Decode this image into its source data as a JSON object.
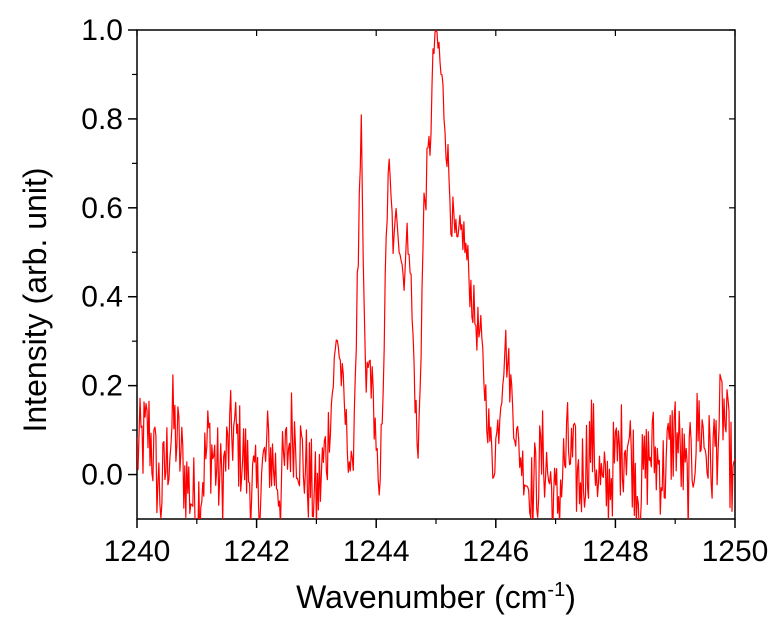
{
  "chart_data": {
    "type": "line",
    "title": "",
    "xlabel": "Wavenumber (cm",
    "xlabel_superscript": "-1",
    "xlabel_suffix": ")",
    "ylabel": "Intensity (arb. unit)",
    "xlim": [
      1240,
      1250
    ],
    "ylim": [
      -0.1,
      1.0
    ],
    "x_ticks": [
      "1240",
      "1242",
      "1244",
      "1246",
      "1248",
      "1250"
    ],
    "y_ticks": [
      "0.0",
      "0.2",
      "0.4",
      "0.6",
      "0.8",
      "1.0"
    ],
    "grid": false,
    "legend": "none",
    "series": [
      {
        "color": "#ff0000",
        "x": [
          1240.0,
          1240.2,
          1240.4,
          1240.6,
          1240.8,
          1241.0,
          1241.2,
          1241.4,
          1241.6,
          1241.8,
          1242.0,
          1242.2,
          1242.4,
          1242.6,
          1242.8,
          1243.0,
          1243.2,
          1243.35,
          1243.5,
          1243.6,
          1243.75,
          1243.82,
          1243.9,
          1244.0,
          1244.05,
          1244.15,
          1244.2,
          1244.3,
          1244.35,
          1244.45,
          1244.55,
          1244.6,
          1244.7,
          1244.8,
          1244.9,
          1244.98,
          1245.05,
          1245.15,
          1245.25,
          1245.35,
          1245.45,
          1245.55,
          1245.65,
          1245.75,
          1245.85,
          1245.95,
          1246.05,
          1246.15,
          1246.25,
          1246.35,
          1246.45,
          1246.6,
          1246.8,
          1247.0,
          1247.2,
          1247.4,
          1247.6,
          1247.8,
          1248.0,
          1248.2,
          1248.4,
          1248.6,
          1248.8,
          1249.0,
          1249.2,
          1249.4,
          1249.6,
          1249.8,
          1250.0
        ],
        "y": [
          0.05,
          0.1,
          -0.05,
          0.12,
          0.0,
          -0.08,
          0.08,
          -0.02,
          0.1,
          0.03,
          -0.05,
          0.06,
          -0.03,
          0.11,
          0.02,
          -0.06,
          0.08,
          0.32,
          0.1,
          -0.02,
          0.75,
          0.2,
          0.25,
          0.08,
          -0.1,
          0.4,
          0.7,
          0.5,
          0.6,
          0.45,
          0.55,
          0.35,
          0.02,
          0.6,
          0.75,
          1.0,
          0.95,
          0.8,
          0.6,
          0.5,
          0.55,
          0.45,
          0.35,
          0.3,
          0.15,
          0.02,
          0.12,
          0.3,
          0.2,
          0.08,
          0.02,
          -0.05,
          0.05,
          -0.08,
          0.06,
          -0.02,
          0.08,
          -0.05,
          0.03,
          0.09,
          -0.04,
          0.06,
          0.0,
          0.1,
          -0.03,
          0.12,
          0.02,
          0.15,
          -0.05
        ]
      }
    ]
  }
}
